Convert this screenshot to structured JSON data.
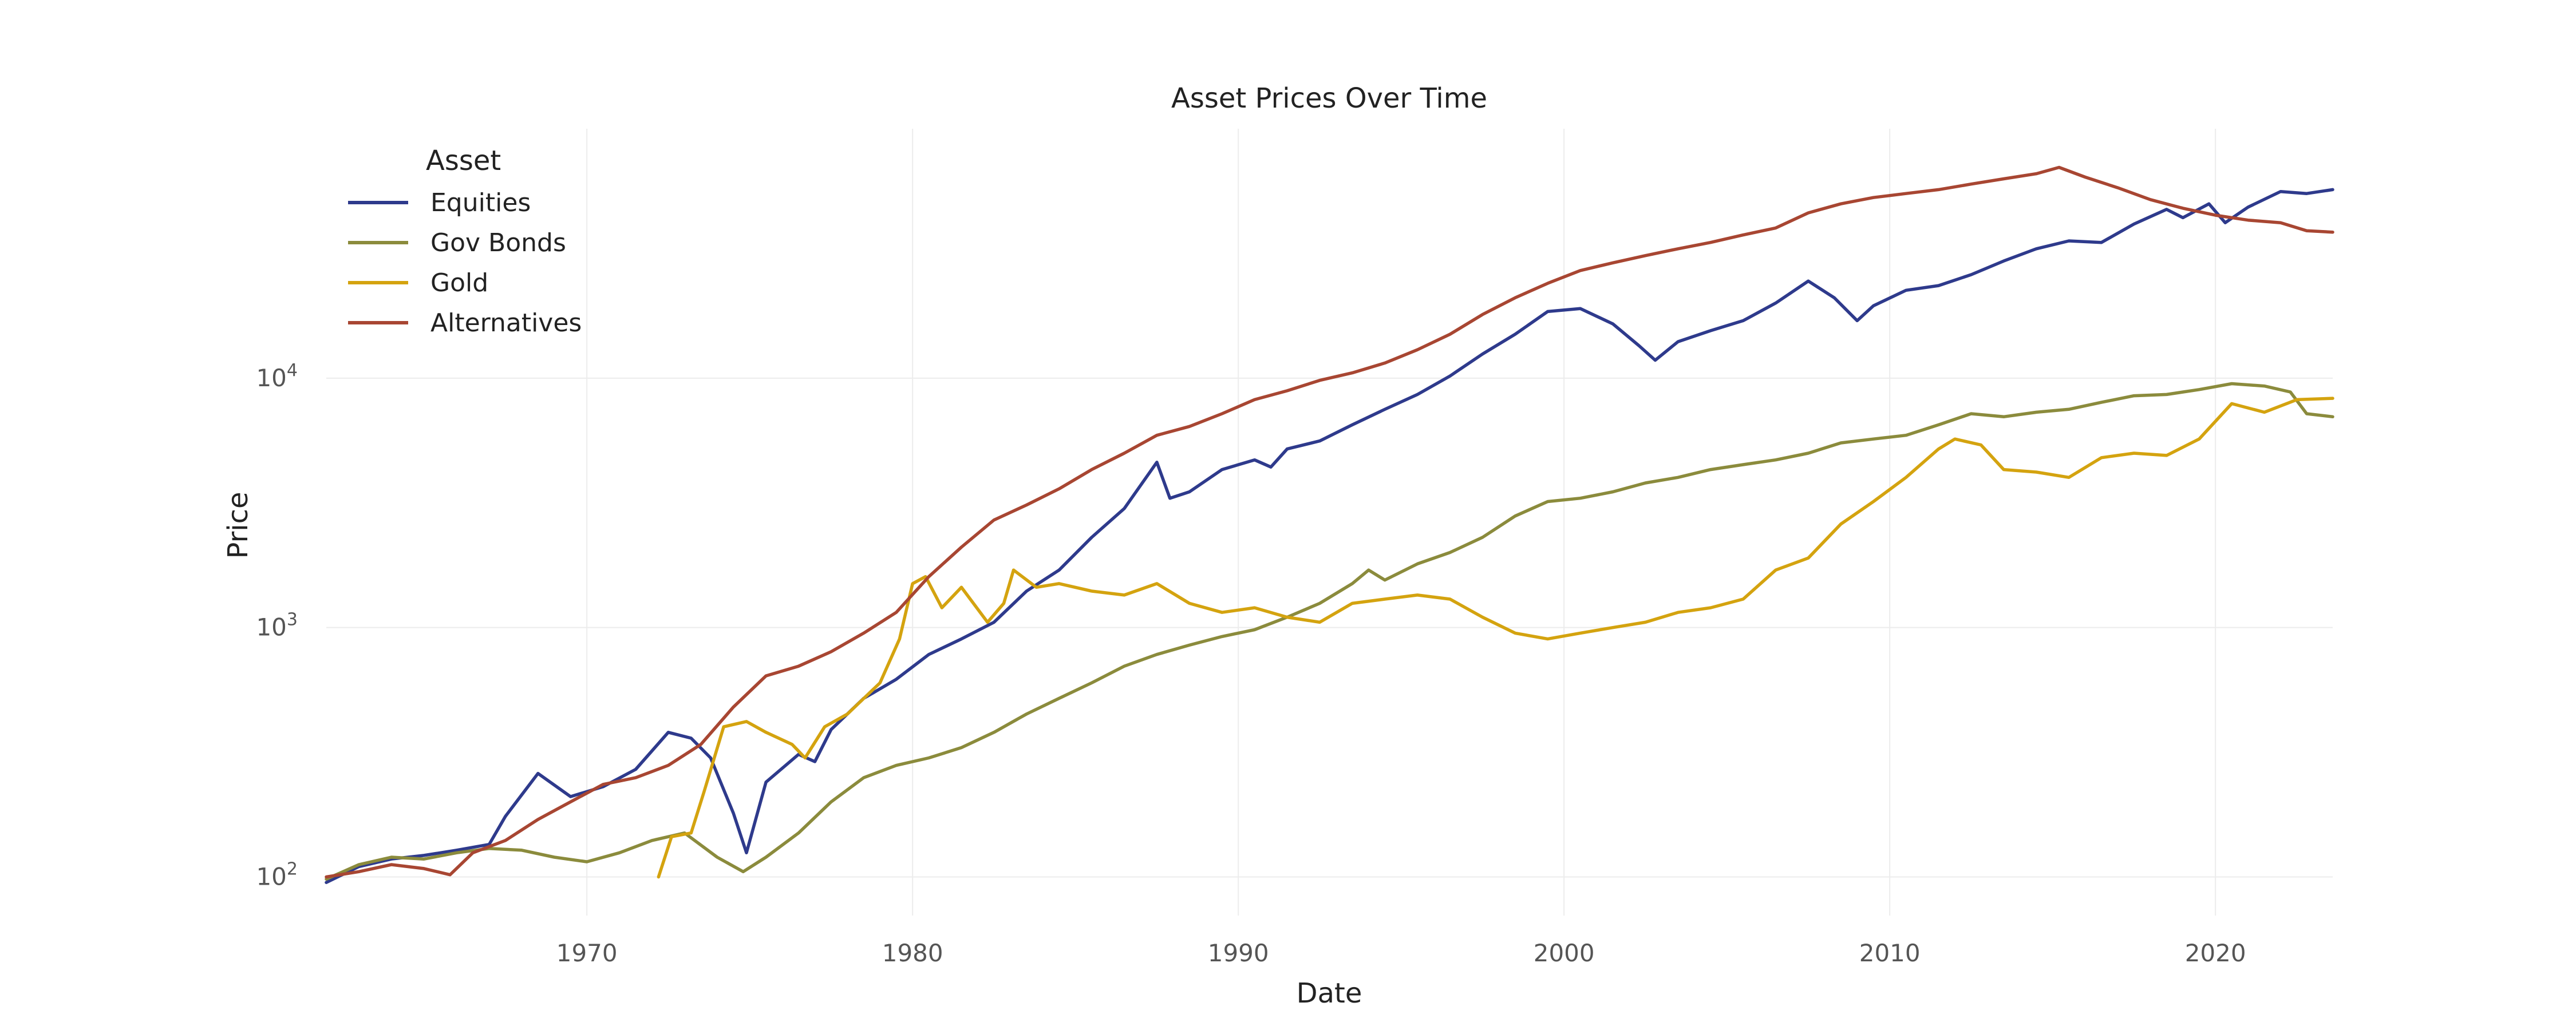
{
  "chart_data": {
    "type": "line",
    "title": "Asset Prices Over Time",
    "xlabel": "Date",
    "ylabel": "Price",
    "y_scale": "log",
    "xlim": [
      1962.0,
      2023.6
    ],
    "ylim": [
      70,
      100000
    ],
    "x_ticks": [
      1970,
      1980,
      1990,
      2000,
      2010,
      2020
    ],
    "x_tick_labels": [
      "1970",
      "1980",
      "1990",
      "2000",
      "2010",
      "2020"
    ],
    "y_ticks": [
      100,
      1000,
      10000
    ],
    "y_tick_labels": [
      {
        "base": "10",
        "exp": "2"
      },
      {
        "base": "10",
        "exp": "3"
      },
      {
        "base": "10",
        "exp": "4"
      }
    ],
    "grid": true,
    "legend": {
      "title": "Asset",
      "position": "top-left"
    },
    "series": [
      {
        "name": "Equities",
        "color": "#2e3a8c",
        "points": [
          [
            1962.0,
            95
          ],
          [
            1963.0,
            110
          ],
          [
            1964.0,
            118
          ],
          [
            1965.0,
            122
          ],
          [
            1966.0,
            128
          ],
          [
            1967.0,
            135
          ],
          [
            1967.5,
            175
          ],
          [
            1968.5,
            260
          ],
          [
            1969.5,
            210
          ],
          [
            1970.5,
            230
          ],
          [
            1971.5,
            270
          ],
          [
            1972.5,
            380
          ],
          [
            1973.2,
            360
          ],
          [
            1973.8,
            300
          ],
          [
            1974.5,
            180
          ],
          [
            1974.9,
            125
          ],
          [
            1975.5,
            240
          ],
          [
            1976.5,
            310
          ],
          [
            1977.0,
            290
          ],
          [
            1977.5,
            390
          ],
          [
            1978.5,
            520
          ],
          [
            1979.5,
            620
          ],
          [
            1980.5,
            780
          ],
          [
            1981.5,
            900
          ],
          [
            1982.5,
            1050
          ],
          [
            1983.5,
            1400
          ],
          [
            1984.5,
            1700
          ],
          [
            1985.5,
            2300
          ],
          [
            1986.5,
            3000
          ],
          [
            1987.5,
            4600
          ],
          [
            1987.9,
            3300
          ],
          [
            1988.5,
            3500
          ],
          [
            1989.5,
            4300
          ],
          [
            1990.5,
            4700
          ],
          [
            1991.0,
            4400
          ],
          [
            1991.5,
            5200
          ],
          [
            1992.5,
            5600
          ],
          [
            1993.5,
            6500
          ],
          [
            1994.5,
            7500
          ],
          [
            1995.5,
            8600
          ],
          [
            1996.5,
            10200
          ],
          [
            1997.5,
            12500
          ],
          [
            1998.5,
            15000
          ],
          [
            1999.5,
            18500
          ],
          [
            2000.5,
            19000
          ],
          [
            2001.5,
            16500
          ],
          [
            2002.3,
            13500
          ],
          [
            2002.8,
            11800
          ],
          [
            2003.5,
            14000
          ],
          [
            2004.5,
            15500
          ],
          [
            2005.5,
            17000
          ],
          [
            2006.5,
            20000
          ],
          [
            2007.5,
            24500
          ],
          [
            2008.3,
            21000
          ],
          [
            2009.0,
            17000
          ],
          [
            2009.5,
            19500
          ],
          [
            2010.5,
            22500
          ],
          [
            2011.5,
            23500
          ],
          [
            2012.5,
            26000
          ],
          [
            2013.5,
            29500
          ],
          [
            2014.5,
            33000
          ],
          [
            2015.5,
            35500
          ],
          [
            2016.5,
            35000
          ],
          [
            2017.5,
            41500
          ],
          [
            2018.5,
            47500
          ],
          [
            2019.0,
            44000
          ],
          [
            2019.8,
            50000
          ],
          [
            2020.3,
            42000
          ],
          [
            2021.0,
            48500
          ],
          [
            2022.0,
            56000
          ],
          [
            2022.8,
            55000
          ],
          [
            2023.6,
            57000
          ]
        ]
      },
      {
        "name": "Gov Bonds",
        "color": "#8b8b3c",
        "points": [
          [
            1962.0,
            98
          ],
          [
            1963.0,
            112
          ],
          [
            1964.0,
            120
          ],
          [
            1965.0,
            118
          ],
          [
            1966.0,
            125
          ],
          [
            1967.0,
            130
          ],
          [
            1968.0,
            128
          ],
          [
            1969.0,
            120
          ],
          [
            1970.0,
            115
          ],
          [
            1971.0,
            125
          ],
          [
            1972.0,
            140
          ],
          [
            1973.0,
            150
          ],
          [
            1974.0,
            120
          ],
          [
            1974.8,
            105
          ],
          [
            1975.5,
            120
          ],
          [
            1976.5,
            150
          ],
          [
            1977.5,
            200
          ],
          [
            1978.5,
            250
          ],
          [
            1979.5,
            280
          ],
          [
            1980.5,
            300
          ],
          [
            1981.5,
            330
          ],
          [
            1982.5,
            380
          ],
          [
            1983.5,
            450
          ],
          [
            1984.5,
            520
          ],
          [
            1985.5,
            600
          ],
          [
            1986.5,
            700
          ],
          [
            1987.5,
            780
          ],
          [
            1988.5,
            850
          ],
          [
            1989.5,
            920
          ],
          [
            1990.5,
            980
          ],
          [
            1991.5,
            1100
          ],
          [
            1992.5,
            1250
          ],
          [
            1993.5,
            1500
          ],
          [
            1994.0,
            1700
          ],
          [
            1994.5,
            1550
          ],
          [
            1995.5,
            1800
          ],
          [
            1996.5,
            2000
          ],
          [
            1997.5,
            2300
          ],
          [
            1998.5,
            2800
          ],
          [
            1999.5,
            3200
          ],
          [
            2000.5,
            3300
          ],
          [
            2001.5,
            3500
          ],
          [
            2002.5,
            3800
          ],
          [
            2003.5,
            4000
          ],
          [
            2004.5,
            4300
          ],
          [
            2005.5,
            4500
          ],
          [
            2006.5,
            4700
          ],
          [
            2007.5,
            5000
          ],
          [
            2008.5,
            5500
          ],
          [
            2009.5,
            5700
          ],
          [
            2010.5,
            5900
          ],
          [
            2011.5,
            6500
          ],
          [
            2012.5,
            7200
          ],
          [
            2013.5,
            7000
          ],
          [
            2014.5,
            7300
          ],
          [
            2015.5,
            7500
          ],
          [
            2016.5,
            8000
          ],
          [
            2017.5,
            8500
          ],
          [
            2018.5,
            8600
          ],
          [
            2019.5,
            9000
          ],
          [
            2020.5,
            9500
          ],
          [
            2021.5,
            9300
          ],
          [
            2022.3,
            8800
          ],
          [
            2022.8,
            7200
          ],
          [
            2023.6,
            7000
          ]
        ]
      },
      {
        "name": "Gold",
        "color": "#d4a30f",
        "points": [
          [
            1972.2,
            100
          ],
          [
            1972.6,
            145
          ],
          [
            1973.2,
            150
          ],
          [
            1973.6,
            220
          ],
          [
            1974.2,
            400
          ],
          [
            1974.9,
            420
          ],
          [
            1975.5,
            380
          ],
          [
            1976.3,
            340
          ],
          [
            1976.7,
            300
          ],
          [
            1977.3,
            400
          ],
          [
            1978.0,
            450
          ],
          [
            1979.0,
            600
          ],
          [
            1979.6,
            900
          ],
          [
            1980.0,
            1500
          ],
          [
            1980.4,
            1600
          ],
          [
            1980.9,
            1200
          ],
          [
            1981.5,
            1450
          ],
          [
            1982.3,
            1050
          ],
          [
            1982.8,
            1250
          ],
          [
            1983.1,
            1700
          ],
          [
            1983.8,
            1450
          ],
          [
            1984.5,
            1500
          ],
          [
            1985.5,
            1400
          ],
          [
            1986.5,
            1350
          ],
          [
            1987.5,
            1500
          ],
          [
            1988.5,
            1250
          ],
          [
            1989.5,
            1150
          ],
          [
            1990.5,
            1200
          ],
          [
            1991.5,
            1100
          ],
          [
            1992.5,
            1050
          ],
          [
            1993.5,
            1250
          ],
          [
            1994.5,
            1300
          ],
          [
            1995.5,
            1350
          ],
          [
            1996.5,
            1300
          ],
          [
            1997.5,
            1100
          ],
          [
            1998.5,
            950
          ],
          [
            1999.5,
            900
          ],
          [
            2000.5,
            950
          ],
          [
            2001.5,
            1000
          ],
          [
            2002.5,
            1050
          ],
          [
            2003.5,
            1150
          ],
          [
            2004.5,
            1200
          ],
          [
            2005.5,
            1300
          ],
          [
            2006.5,
            1700
          ],
          [
            2007.5,
            1900
          ],
          [
            2008.5,
            2600
          ],
          [
            2009.5,
            3200
          ],
          [
            2010.5,
            4000
          ],
          [
            2011.5,
            5200
          ],
          [
            2012.0,
            5700
          ],
          [
            2012.8,
            5400
          ],
          [
            2013.5,
            4300
          ],
          [
            2014.5,
            4200
          ],
          [
            2015.5,
            4000
          ],
          [
            2016.5,
            4800
          ],
          [
            2017.5,
            5000
          ],
          [
            2018.5,
            4900
          ],
          [
            2019.5,
            5700
          ],
          [
            2020.5,
            7900
          ],
          [
            2021.5,
            7300
          ],
          [
            2022.5,
            8200
          ],
          [
            2023.6,
            8300
          ]
        ]
      },
      {
        "name": "Alternatives",
        "color": "#a84632",
        "points": [
          [
            1962.0,
            100
          ],
          [
            1963.0,
            105
          ],
          [
            1964.0,
            112
          ],
          [
            1965.0,
            108
          ],
          [
            1965.8,
            102
          ],
          [
            1966.5,
            125
          ],
          [
            1967.5,
            140
          ],
          [
            1968.5,
            170
          ],
          [
            1969.5,
            200
          ],
          [
            1970.5,
            235
          ],
          [
            1971.5,
            250
          ],
          [
            1972.5,
            280
          ],
          [
            1973.5,
            340
          ],
          [
            1974.5,
            480
          ],
          [
            1975.5,
            640
          ],
          [
            1976.5,
            700
          ],
          [
            1977.5,
            800
          ],
          [
            1978.5,
            950
          ],
          [
            1979.5,
            1150
          ],
          [
            1980.5,
            1600
          ],
          [
            1981.5,
            2100
          ],
          [
            1982.5,
            2700
          ],
          [
            1983.5,
            3100
          ],
          [
            1984.5,
            3600
          ],
          [
            1985.5,
            4300
          ],
          [
            1986.5,
            5000
          ],
          [
            1987.5,
            5900
          ],
          [
            1988.5,
            6400
          ],
          [
            1989.5,
            7200
          ],
          [
            1990.5,
            8200
          ],
          [
            1991.5,
            8900
          ],
          [
            1992.5,
            9800
          ],
          [
            1993.5,
            10500
          ],
          [
            1994.5,
            11500
          ],
          [
            1995.5,
            13000
          ],
          [
            1996.5,
            15000
          ],
          [
            1997.5,
            18000
          ],
          [
            1998.5,
            21000
          ],
          [
            1999.5,
            24000
          ],
          [
            2000.5,
            27000
          ],
          [
            2001.5,
            29000
          ],
          [
            2002.5,
            31000
          ],
          [
            2003.5,
            33000
          ],
          [
            2004.5,
            35000
          ],
          [
            2005.5,
            37500
          ],
          [
            2006.5,
            40000
          ],
          [
            2007.5,
            46000
          ],
          [
            2008.5,
            50000
          ],
          [
            2009.5,
            53000
          ],
          [
            2010.5,
            55000
          ],
          [
            2011.5,
            57000
          ],
          [
            2012.5,
            60000
          ],
          [
            2013.5,
            63000
          ],
          [
            2014.5,
            66000
          ],
          [
            2015.2,
            70000
          ],
          [
            2016.0,
            64000
          ],
          [
            2017.0,
            58000
          ],
          [
            2018.0,
            52000
          ],
          [
            2019.0,
            48000
          ],
          [
            2020.0,
            45000
          ],
          [
            2021.0,
            43000
          ],
          [
            2022.0,
            42000
          ],
          [
            2022.8,
            39000
          ],
          [
            2023.6,
            38500
          ]
        ]
      }
    ]
  }
}
